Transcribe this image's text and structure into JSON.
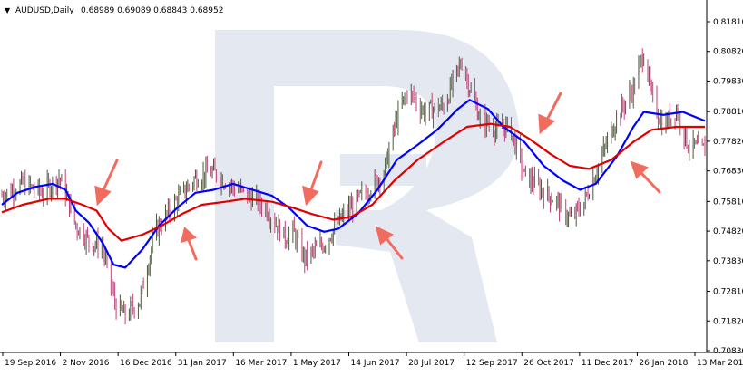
{
  "header": {
    "triangle": "▼",
    "symbol": "AUDUSD,Daily",
    "ohlc": "0.68989 0.69089 0.68843 0.68952"
  },
  "chart_data": {
    "type": "candlestick",
    "ylim": [
      0.7073,
      0.8208
    ],
    "y_ticks": [
      "0.81810",
      "0.80820",
      "0.79830",
      "0.78810",
      "0.77820",
      "0.76830",
      "0.75810",
      "0.74820",
      "0.73830",
      "0.72810",
      "0.71820",
      "0.70830"
    ],
    "x_ticks": [
      "19 Sep 2016",
      "2 Nov 2016",
      "16 Dec 2016",
      "31 Jan 2017",
      "16 Mar 2017",
      "1 May 2017",
      "14 Jun 2017",
      "28 Jul 2017",
      "12 Sep 2017",
      "26 Oct 2017",
      "11 Dec 2017",
      "26 Jan 2018",
      "13 Mar 2018"
    ],
    "x_range": [
      "2016-09-19",
      "2018-03-14"
    ],
    "close_anchors": [
      [
        "2016-09-19",
        0.76
      ],
      [
        "2016-10-05",
        0.764
      ],
      [
        "2016-10-20",
        0.761
      ],
      [
        "2016-11-02",
        0.766
      ],
      [
        "2016-11-08",
        0.76
      ],
      [
        "2016-11-15",
        0.75
      ],
      [
        "2016-11-25",
        0.745
      ],
      [
        "2016-12-05",
        0.743
      ],
      [
        "2016-12-16",
        0.723
      ],
      [
        "2016-12-23",
        0.72
      ],
      [
        "2017-01-03",
        0.725
      ],
      [
        "2017-01-15",
        0.748
      ],
      [
        "2017-01-31",
        0.758
      ],
      [
        "2017-02-15",
        0.766
      ],
      [
        "2017-02-28",
        0.768
      ],
      [
        "2017-03-16",
        0.763
      ],
      [
        "2017-03-28",
        0.76
      ],
      [
        "2017-04-10",
        0.756
      ],
      [
        "2017-04-25",
        0.746
      ],
      [
        "2017-05-01",
        0.748
      ],
      [
        "2017-05-10",
        0.739
      ],
      [
        "2017-05-25",
        0.744
      ],
      [
        "2017-06-05",
        0.751
      ],
      [
        "2017-06-14",
        0.756
      ],
      [
        "2017-06-28",
        0.762
      ],
      [
        "2017-07-10",
        0.768
      ],
      [
        "2017-07-20",
        0.786
      ],
      [
        "2017-07-28",
        0.795
      ],
      [
        "2017-08-10",
        0.788
      ],
      [
        "2017-08-25",
        0.79
      ],
      [
        "2017-09-08",
        0.805
      ],
      [
        "2017-09-12",
        0.799
      ],
      [
        "2017-09-22",
        0.786
      ],
      [
        "2017-10-05",
        0.782
      ],
      [
        "2017-10-15",
        0.783
      ],
      [
        "2017-10-26",
        0.767
      ],
      [
        "2017-11-08",
        0.762
      ],
      [
        "2017-11-20",
        0.758
      ],
      [
        "2017-12-01",
        0.752
      ],
      [
        "2017-12-11",
        0.758
      ],
      [
        "2017-12-22",
        0.77
      ],
      [
        "2018-01-05",
        0.786
      ],
      [
        "2018-01-18",
        0.796
      ],
      [
        "2018-01-26",
        0.808
      ],
      [
        "2018-02-01",
        0.793
      ],
      [
        "2018-02-10",
        0.783
      ],
      [
        "2018-02-20",
        0.789
      ],
      [
        "2018-03-01",
        0.777
      ],
      [
        "2018-03-14",
        0.775
      ]
    ],
    "series": [
      {
        "color": "#0000ff",
        "points": [
          [
            "2016-09-19",
            0.757
          ],
          [
            "2016-10-01",
            0.761
          ],
          [
            "2016-10-15",
            0.763
          ],
          [
            "2016-10-28",
            0.764
          ],
          [
            "2016-11-07",
            0.762
          ],
          [
            "2016-11-15",
            0.755
          ],
          [
            "2016-11-25",
            0.751
          ],
          [
            "2016-12-06",
            0.744
          ],
          [
            "2016-12-14",
            0.737
          ],
          [
            "2016-12-23",
            0.736
          ],
          [
            "2017-01-05",
            0.742
          ],
          [
            "2017-01-18",
            0.75
          ],
          [
            "2017-02-01",
            0.756
          ],
          [
            "2017-02-15",
            0.761
          ],
          [
            "2017-03-01",
            0.762
          ],
          [
            "2017-03-16",
            0.764
          ],
          [
            "2017-03-31",
            0.762
          ],
          [
            "2017-04-15",
            0.76
          ],
          [
            "2017-04-28",
            0.756
          ],
          [
            "2017-05-12",
            0.75
          ],
          [
            "2017-05-25",
            0.748
          ],
          [
            "2017-06-05",
            0.749
          ],
          [
            "2017-06-20",
            0.754
          ],
          [
            "2017-07-05",
            0.762
          ],
          [
            "2017-07-20",
            0.772
          ],
          [
            "2017-08-05",
            0.777
          ],
          [
            "2017-08-20",
            0.782
          ],
          [
            "2017-09-05",
            0.789
          ],
          [
            "2017-09-14",
            0.792
          ],
          [
            "2017-09-28",
            0.789
          ],
          [
            "2017-10-10",
            0.783
          ],
          [
            "2017-10-26",
            0.778
          ],
          [
            "2017-11-10",
            0.77
          ],
          [
            "2017-11-25",
            0.765
          ],
          [
            "2017-12-08",
            0.762
          ],
          [
            "2017-12-20",
            0.764
          ],
          [
            "2018-01-05",
            0.773
          ],
          [
            "2018-01-18",
            0.783
          ],
          [
            "2018-01-26",
            0.788
          ],
          [
            "2018-02-10",
            0.787
          ],
          [
            "2018-02-25",
            0.788
          ],
          [
            "2018-03-14",
            0.785
          ]
        ]
      },
      {
        "color": "#e00000",
        "points": [
          [
            "2016-09-19",
            0.7545
          ],
          [
            "2016-10-05",
            0.757
          ],
          [
            "2016-10-25",
            0.759
          ],
          [
            "2016-11-07",
            0.759
          ],
          [
            "2016-11-20",
            0.757
          ],
          [
            "2016-12-01",
            0.755
          ],
          [
            "2016-12-10",
            0.749
          ],
          [
            "2016-12-20",
            0.745
          ],
          [
            "2017-01-05",
            0.747
          ],
          [
            "2017-01-20",
            0.75
          ],
          [
            "2017-02-05",
            0.754
          ],
          [
            "2017-02-20",
            0.757
          ],
          [
            "2017-03-10",
            0.758
          ],
          [
            "2017-03-25",
            0.759
          ],
          [
            "2017-04-15",
            0.758
          ],
          [
            "2017-05-01",
            0.756
          ],
          [
            "2017-05-15",
            0.754
          ],
          [
            "2017-06-01",
            0.752
          ],
          [
            "2017-06-15",
            0.753
          ],
          [
            "2017-07-01",
            0.757
          ],
          [
            "2017-07-18",
            0.765
          ],
          [
            "2017-08-05",
            0.772
          ],
          [
            "2017-08-25",
            0.778
          ],
          [
            "2017-09-12",
            0.783
          ],
          [
            "2017-09-30",
            0.784
          ],
          [
            "2017-10-15",
            0.783
          ],
          [
            "2017-10-30",
            0.779
          ],
          [
            "2017-11-15",
            0.774
          ],
          [
            "2017-11-30",
            0.77
          ],
          [
            "2017-12-15",
            0.769
          ],
          [
            "2018-01-01",
            0.772
          ],
          [
            "2018-01-18",
            0.778
          ],
          [
            "2018-02-01",
            0.782
          ],
          [
            "2018-02-20",
            0.783
          ],
          [
            "2018-03-14",
            0.783
          ]
        ]
      }
    ],
    "candle_colors": {
      "bull": "#4a5a3a",
      "bear": "#c0407a"
    }
  }
}
